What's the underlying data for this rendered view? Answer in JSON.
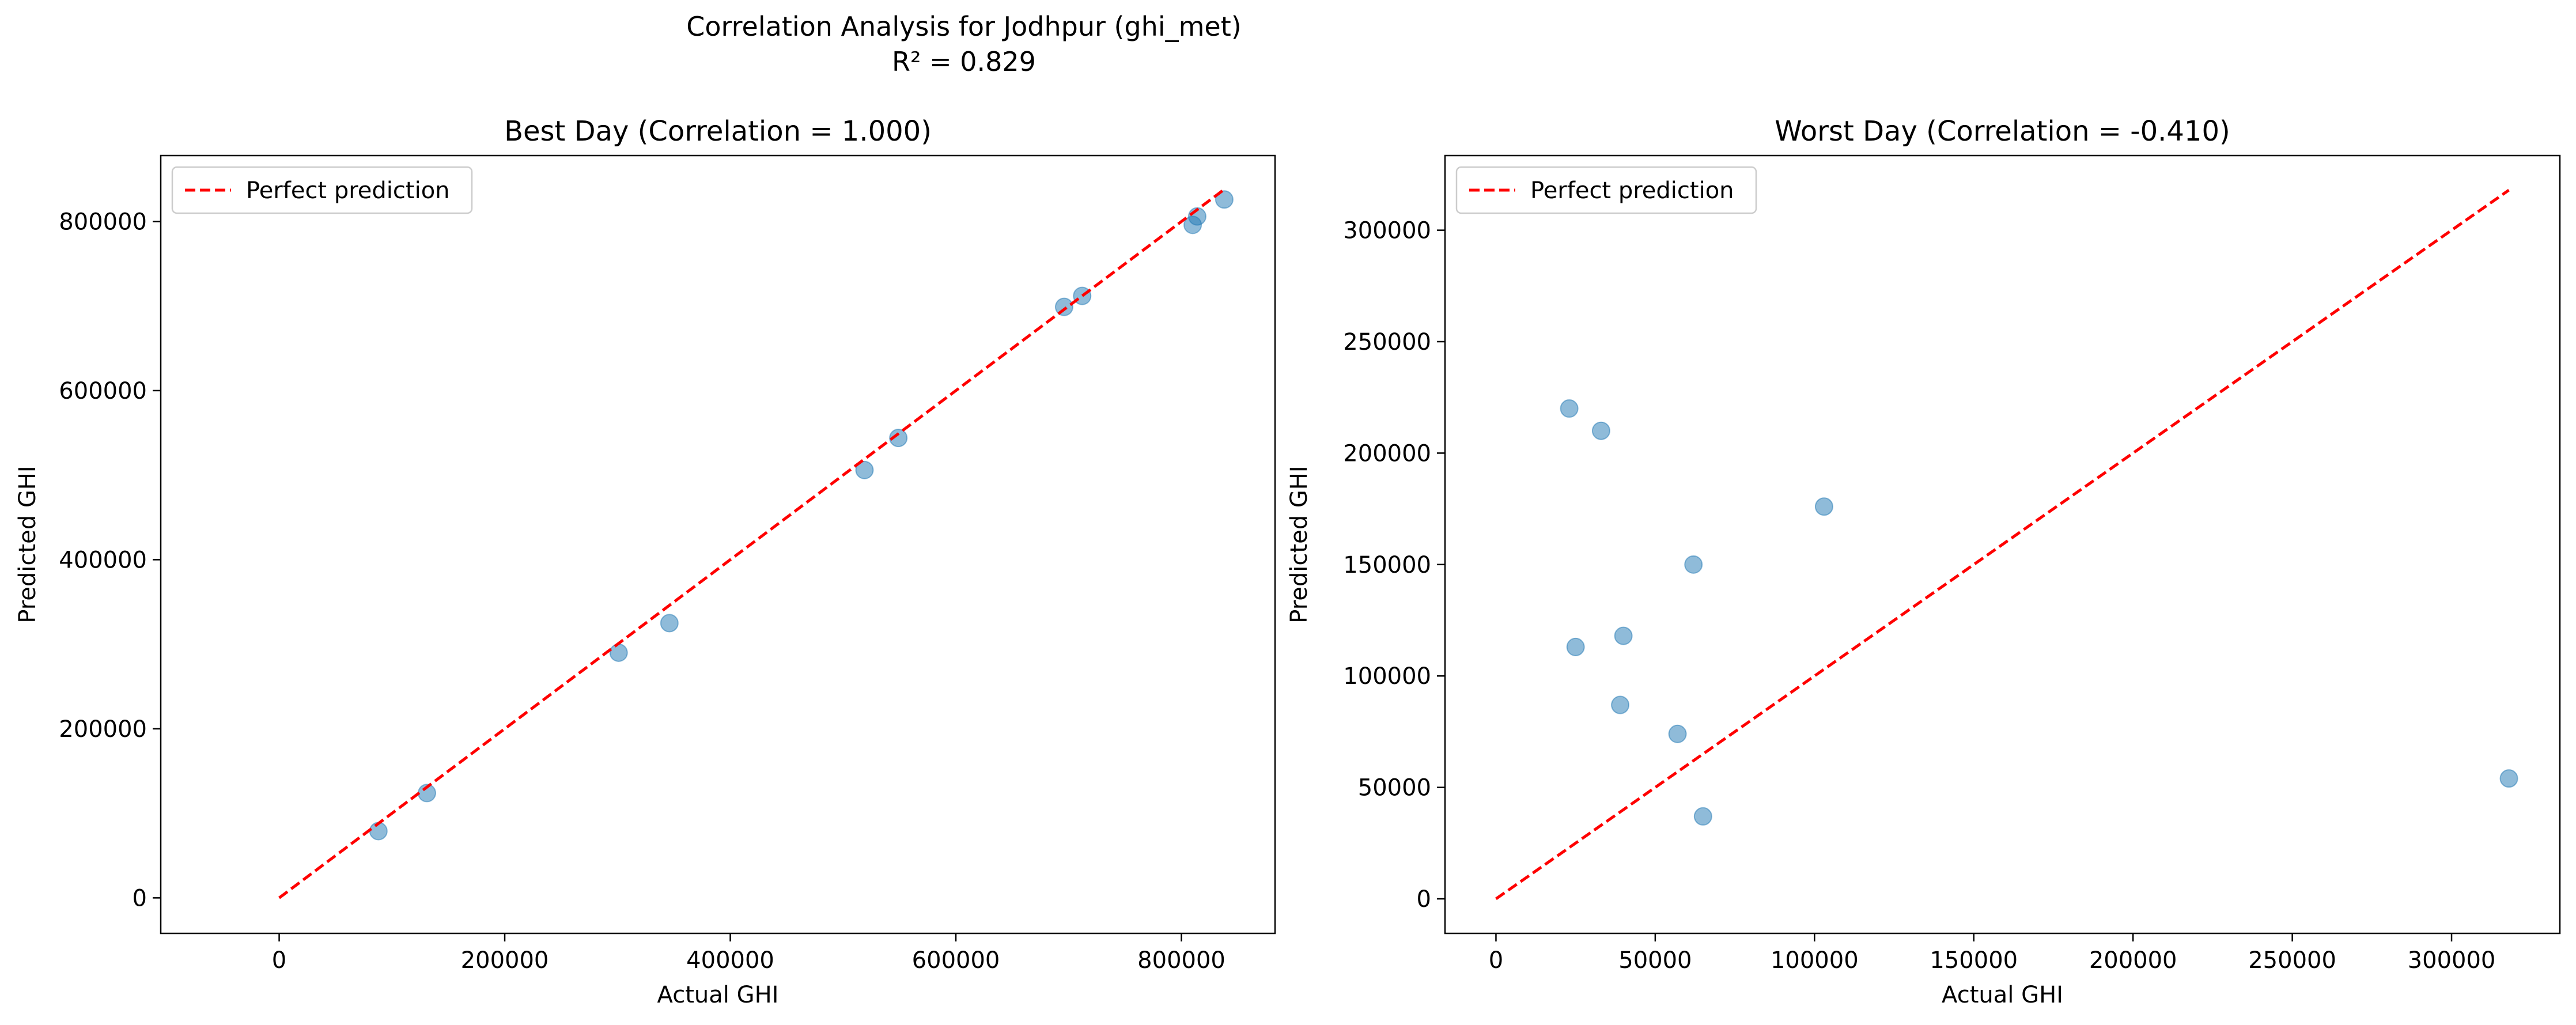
{
  "figure": {
    "title_line1": "Correlation Analysis for Jodhpur (ghi_met)",
    "title_line2": "R² = 0.829"
  },
  "chart_data": [
    {
      "type": "scatter",
      "title": "Best Day (Correlation = 1.000)",
      "xlabel": "Actual GHI",
      "ylabel": "Predicted GHI",
      "xlim": [
        -105000,
        883000
      ],
      "ylim": [
        -42000,
        878000
      ],
      "xticks": [
        0,
        200000,
        400000,
        600000,
        800000
      ],
      "yticks": [
        0,
        200000,
        400000,
        600000,
        800000
      ],
      "tick_labels_x": [
        "0",
        "200000",
        "400000",
        "600000",
        "800000"
      ],
      "tick_labels_y": [
        "0",
        "200000",
        "400000",
        "600000",
        "800000"
      ],
      "grid": false,
      "legend": {
        "position": "top-left",
        "entries": [
          "Perfect prediction"
        ]
      },
      "colors": {
        "points": "#1f77b4",
        "line": "#ff0000"
      },
      "reference_line": {
        "name": "Perfect prediction",
        "x": [
          0,
          838000
        ],
        "y": [
          0,
          838000
        ]
      },
      "series": [
        {
          "x": [
            88000,
            131000,
            301000,
            346000,
            519000,
            549000,
            696000,
            712000,
            810000,
            814000,
            838000
          ],
          "y": [
            79000,
            124000,
            290000,
            325000,
            506000,
            544000,
            699000,
            712000,
            796000,
            806000,
            826000
          ]
        }
      ]
    },
    {
      "type": "scatter",
      "title": "Worst Day (Correlation = -0.410)",
      "xlabel": "Actual GHI",
      "ylabel": "Predicted GHI",
      "xlim": [
        -16000,
        334000
      ],
      "ylim": [
        -15500,
        333500
      ],
      "xticks": [
        0,
        50000,
        100000,
        150000,
        200000,
        250000,
        300000
      ],
      "yticks": [
        0,
        50000,
        100000,
        150000,
        200000,
        250000,
        300000
      ],
      "tick_labels_x": [
        "0",
        "50000",
        "100000",
        "150000",
        "200000",
        "250000",
        "300000"
      ],
      "tick_labels_y": [
        "0",
        "50000",
        "100000",
        "150000",
        "200000",
        "250000",
        "300000"
      ],
      "grid": false,
      "legend": {
        "position": "top-left",
        "entries": [
          "Perfect prediction"
        ]
      },
      "colors": {
        "points": "#1f77b4",
        "line": "#ff0000"
      },
      "reference_line": {
        "name": "Perfect prediction",
        "x": [
          0,
          318000
        ],
        "y": [
          0,
          318000
        ]
      },
      "series": [
        {
          "x": [
            23000,
            33000,
            25000,
            40000,
            39000,
            57000,
            62000,
            65000,
            103000,
            318000
          ],
          "y": [
            220000,
            210000,
            113000,
            118000,
            87000,
            74000,
            150000,
            37000,
            176000,
            54000
          ]
        }
      ]
    }
  ]
}
